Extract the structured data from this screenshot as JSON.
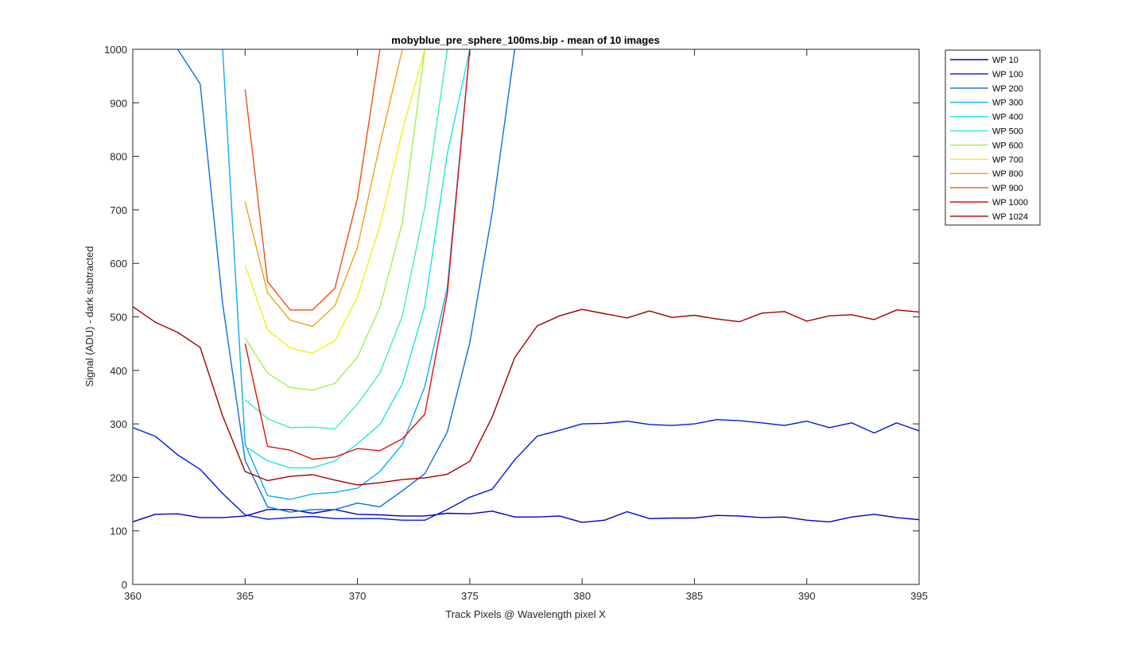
{
  "chart_data": {
    "type": "line",
    "title": "mobyblue_pre_sphere_100ms.bip - mean of 10 images",
    "xlabel": "Track Pixels @ Wavelength pixel X",
    "ylabel": "Signal (ADU) - dark subtracted",
    "xlim": [
      360,
      395
    ],
    "ylim": [
      0,
      1000
    ],
    "xticks": [
      360,
      365,
      370,
      375,
      380,
      385,
      390,
      395
    ],
    "yticks": [
      0,
      100,
      200,
      300,
      400,
      500,
      600,
      700,
      800,
      900,
      1000
    ],
    "grid": false,
    "legend_position": "outside-top-right",
    "x": [
      360,
      361,
      362,
      363,
      364,
      365,
      366,
      367,
      368,
      369,
      370,
      371,
      372,
      373,
      374,
      375,
      376,
      377,
      378,
      379,
      380,
      381,
      382,
      383,
      384,
      385,
      386,
      387,
      388,
      389,
      390,
      391,
      392,
      393,
      394,
      395
    ],
    "series": [
      {
        "name": "WP 10",
        "color": "#0000c8",
        "values": [
          117,
          131,
          132,
          125,
          125,
          128,
          140,
          140,
          133,
          140,
          131,
          130,
          128,
          128,
          133,
          132,
          137,
          126,
          126,
          128,
          116,
          120,
          136,
          123,
          124,
          124,
          129,
          128,
          125,
          126,
          120,
          117,
          126,
          131,
          125,
          121
        ]
      },
      {
        "name": "WP 100",
        "color": "#0018e0",
        "values": [
          293,
          277,
          242,
          215,
          170,
          130,
          122,
          125,
          127,
          123,
          123,
          123,
          120,
          120,
          140,
          163,
          178,
          233,
          277,
          288,
          300,
          301,
          305,
          299,
          297,
          300,
          308,
          306,
          302,
          297,
          305,
          293,
          302,
          283,
          302,
          287
        ]
      },
      {
        "name": "WP 200",
        "color": "#0a6ee0",
        "values": [
          null,
          null,
          1000,
          935,
          525,
          232,
          145,
          135,
          140,
          140,
          152,
          145,
          175,
          207,
          285,
          452,
          695,
          1000,
          null,
          null,
          null,
          null,
          null,
          null,
          null,
          null,
          null,
          null,
          null,
          null,
          null,
          null,
          null,
          null,
          null,
          null
        ]
      },
      {
        "name": "WP 300",
        "color": "#10aaf0",
        "values": [
          null,
          null,
          null,
          null,
          1000,
          262,
          166,
          159,
          169,
          172,
          180,
          211,
          262,
          370,
          555,
          1000,
          null,
          null,
          null,
          null,
          null,
          null,
          null,
          null,
          null,
          null,
          null,
          null,
          null,
          null,
          null,
          null,
          null,
          null,
          null,
          null
        ]
      },
      {
        "name": "WP 400",
        "color": "#18e6e6",
        "values": [
          null,
          null,
          null,
          null,
          null,
          258,
          231,
          218,
          218,
          231,
          263,
          299,
          375,
          520,
          805,
          1000,
          null,
          null,
          null,
          null,
          null,
          null,
          null,
          null,
          null,
          null,
          null,
          null,
          null,
          null,
          null,
          null,
          null,
          null,
          null,
          null
        ]
      },
      {
        "name": "WP 500",
        "color": "#3cf0aa",
        "values": [
          null,
          null,
          null,
          null,
          null,
          345,
          310,
          293,
          294,
          291,
          337,
          395,
          502,
          705,
          1000,
          null,
          null,
          null,
          null,
          null,
          null,
          null,
          null,
          null,
          null,
          null,
          null,
          null,
          null,
          null,
          null,
          null,
          null,
          null,
          null,
          null
        ]
      },
      {
        "name": "WP 600",
        "color": "#a0f050",
        "values": [
          null,
          null,
          null,
          null,
          null,
          460,
          395,
          368,
          363,
          376,
          425,
          518,
          676,
          1000,
          null,
          null,
          null,
          null,
          null,
          null,
          null,
          null,
          null,
          null,
          null,
          null,
          null,
          null,
          null,
          null,
          null,
          null,
          null,
          null,
          null,
          null
        ]
      },
      {
        "name": "WP 700",
        "color": "#f0f014",
        "values": [
          null,
          null,
          null,
          null,
          null,
          597,
          476,
          442,
          432,
          456,
          537,
          670,
          848,
          1000,
          null,
          null,
          null,
          null,
          null,
          null,
          null,
          null,
          null,
          null,
          null,
          null,
          null,
          null,
          null,
          null,
          null,
          null,
          null,
          null,
          null,
          null
        ]
      },
      {
        "name": "WP 800",
        "color": "#f0a014",
        "values": [
          null,
          null,
          null,
          null,
          null,
          715,
          545,
          494,
          482,
          521,
          630,
          822,
          1000,
          null,
          null,
          null,
          null,
          null,
          null,
          null,
          null,
          null,
          null,
          null,
          null,
          null,
          null,
          null,
          null,
          null,
          null,
          null,
          null,
          null,
          null,
          null
        ]
      },
      {
        "name": "WP 900",
        "color": "#f05014",
        "values": [
          null,
          null,
          null,
          null,
          null,
          925,
          566,
          513,
          513,
          554,
          722,
          1000,
          null,
          null,
          null,
          null,
          null,
          null,
          null,
          null,
          null,
          null,
          null,
          null,
          null,
          null,
          null,
          null,
          null,
          null,
          null,
          null,
          null,
          null,
          null,
          null
        ]
      },
      {
        "name": "WP 1000",
        "color": "#e01010",
        "values": [
          null,
          null,
          null,
          null,
          null,
          450,
          258,
          251,
          234,
          238,
          254,
          250,
          272,
          318,
          543,
          1000,
          null,
          null,
          null,
          null,
          null,
          null,
          null,
          null,
          null,
          null,
          null,
          null,
          null,
          null,
          null,
          null,
          null,
          null,
          null,
          null
        ]
      },
      {
        "name": "WP 1024",
        "color": "#a00000",
        "values": [
          519,
          490,
          471,
          443,
          315,
          211,
          194,
          202,
          205,
          195,
          186,
          190,
          196,
          199,
          206,
          230,
          313,
          424,
          483,
          502,
          514,
          506,
          498,
          511,
          499,
          503,
          496,
          491,
          507,
          510,
          492,
          502,
          504,
          495,
          513,
          509
        ]
      }
    ]
  }
}
